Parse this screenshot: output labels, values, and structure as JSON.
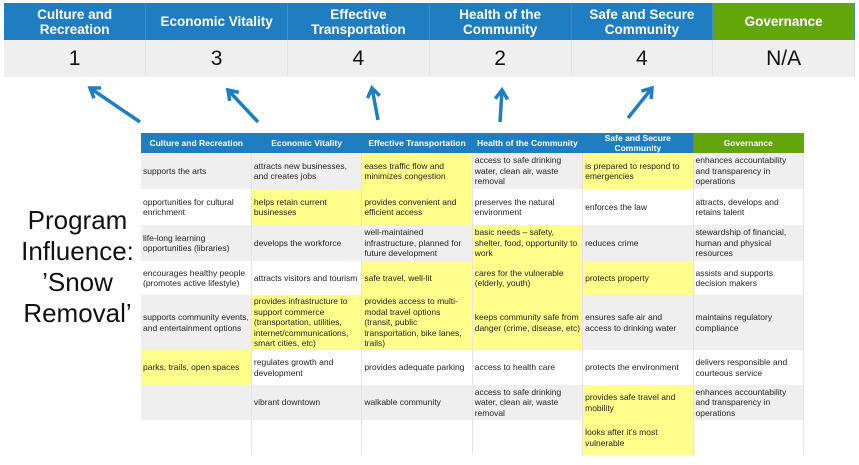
{
  "summary": {
    "columns": [
      {
        "label": "Culture and Recreation",
        "score": "1",
        "color": "#1f7ec1"
      },
      {
        "label": "Economic Vitality",
        "score": "3",
        "color": "#1f7ec1"
      },
      {
        "label": "Effective Transportation",
        "score": "4",
        "color": "#1f7ec1"
      },
      {
        "label": "Health of the Community",
        "score": "2",
        "color": "#1f7ec1"
      },
      {
        "label": "Safe and Secure Community",
        "score": "4",
        "color": "#1f7ec1"
      },
      {
        "label": "Governance",
        "score": "N/A",
        "color": "#62a60a"
      }
    ]
  },
  "program_label": "Program Influence: ’Snow Removal’",
  "highlight_color": "#ffff8c",
  "arrow_color": "#1f7ec1",
  "detail": {
    "headers": [
      "Culture and Recreation",
      "Economic Vitality",
      "Effective Transportation",
      "Health of the Community",
      "Safe and Secure Community",
      "Governance"
    ],
    "rows": [
      [
        {
          "t": "supports the arts"
        },
        {
          "t": "attracts new businesses, and creates jobs"
        },
        {
          "t": "eases traffic flow and minimizes congestion",
          "h": true
        },
        {
          "t": "access to safe drinking water, clean air, waste removal"
        },
        {
          "t": "is prepared to respond to emergencies",
          "h": true
        },
        {
          "t": "enhances accountability and transparency in operations"
        }
      ],
      [
        {
          "t": "opportunities for cultural enrichment"
        },
        {
          "t": "helps retain current businesses",
          "h": true
        },
        {
          "t": "provides convenient and efficient access",
          "h": true
        },
        {
          "t": "preserves the natural environment"
        },
        {
          "t": "enforces the law"
        },
        {
          "t": "attracts, develops and retains talent"
        }
      ],
      [
        {
          "t": "life-long learning opportunities (libraries)"
        },
        {
          "t": "develops the workforce"
        },
        {
          "t": "well-maintained infrastructure, planned for future development"
        },
        {
          "t": "basic needs – safety, shelter, food, opportunity to work",
          "h": true
        },
        {
          "t": "reduces crime"
        },
        {
          "t": "stewardship of financial, human and physical resources"
        }
      ],
      [
        {
          "t": "encourages healthy people (promotes active lifestyle)"
        },
        {
          "t": "attracts visitors and tourism"
        },
        {
          "t": "safe travel, well-lit",
          "h": true
        },
        {
          "t": "cares for the vulnerable (elderly, youth)",
          "h": true
        },
        {
          "t": "protects property",
          "h": true
        },
        {
          "t": "assists and supports decision makers"
        }
      ],
      [
        {
          "t": "supports community events, and entertainment options"
        },
        {
          "t": "provides infrastructure to support commerce (transportation, utilities, internet/communications, smart cities, etc)",
          "h": true
        },
        {
          "t": "provides access to multi-modal travel options (transit, public transportation, bike lanes, trails)",
          "h": true
        },
        {
          "t": "keeps community safe from danger (crime, disease, etc)",
          "h": true
        },
        {
          "t": "ensures safe air and access to drinking water"
        },
        {
          "t": "maintains regulatory compliance"
        }
      ],
      [
        {
          "t": "parks, trails, open spaces",
          "h": true
        },
        {
          "t": "regulates growth and development"
        },
        {
          "t": "provides adequate parking"
        },
        {
          "t": "access to health care"
        },
        {
          "t": "protects the environment"
        },
        {
          "t": "delivers responsible and courteous service"
        }
      ],
      [
        {
          "t": ""
        },
        {
          "t": "vibrant downtown"
        },
        {
          "t": "walkable community"
        },
        {
          "t": "access to safe drinking water, clean air, waste removal"
        },
        {
          "t": "provides safe travel and mobility",
          "h": true
        },
        {
          "t": "enhances accountability and transparency in operations"
        }
      ],
      [
        {
          "t": ""
        },
        {
          "t": ""
        },
        {
          "t": ""
        },
        {
          "t": ""
        },
        {
          "t": "looks after it's most vulnerable",
          "h": true
        },
        {
          "t": ""
        }
      ]
    ]
  }
}
